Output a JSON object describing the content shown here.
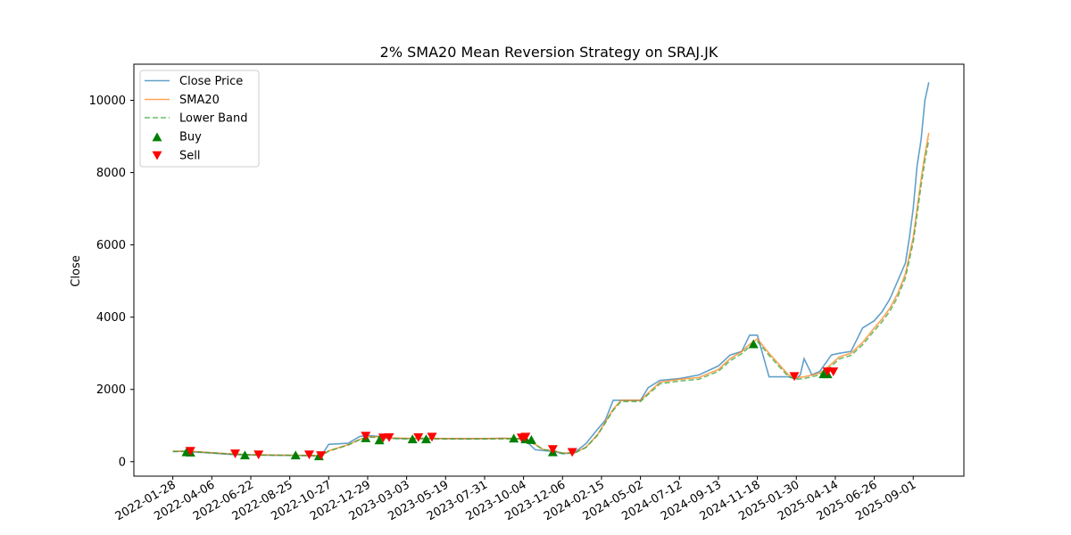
{
  "chart_data": {
    "type": "line",
    "title": "2% SMA20 Mean Reversion Strategy on SRAJ.JK",
    "xlabel": "",
    "ylabel": "Close",
    "ylim": [
      -400,
      11000
    ],
    "yticks": [
      0,
      2000,
      4000,
      6000,
      8000,
      10000
    ],
    "xticks": [
      "2022-01-28",
      "2022-04-06",
      "2022-06-22",
      "2022-08-25",
      "2022-10-27",
      "2022-12-29",
      "2023-03-03",
      "2023-05-19",
      "2023-07-31",
      "2023-10-04",
      "2023-12-06",
      "2024-02-15",
      "2024-05-02",
      "2024-07-12",
      "2024-09-13",
      "2024-11-18",
      "2025-01-30",
      "2025-04-14",
      "2025-06-26",
      "2025-09-01"
    ],
    "xlim_index": [
      -1.0,
      20.3
    ],
    "legend": {
      "position": "top-left",
      "entries": [
        "Close Price",
        "SMA20",
        "Lower Band",
        "Buy",
        "Sell"
      ]
    },
    "colors": {
      "close": "#1f77b4",
      "sma": "#ff7f0e",
      "lower": "#2ca02c",
      "buy": "#008000",
      "sell": "#ff0000"
    },
    "series": [
      {
        "name": "Close Price",
        "x": [
          0,
          0.3,
          0.5,
          1,
          1.5,
          2,
          2.5,
          3,
          3.5,
          3.8,
          4,
          4.5,
          4.8,
          5,
          5.3,
          5.5,
          6,
          6.5,
          7,
          7.5,
          8,
          8.5,
          9,
          9.3,
          9.5,
          9.8,
          10,
          10.3,
          10.6,
          10.9,
          11.1,
          11.3,
          11.5,
          11.8,
          12,
          12.2,
          12.5,
          13,
          13.5,
          14,
          14.3,
          14.6,
          14.8,
          15,
          15.3,
          15.8,
          16,
          16.1,
          16.2,
          16.4,
          16.6,
          16.9,
          17.1,
          17.4,
          17.7,
          18,
          18.2,
          18.4,
          18.6,
          18.8,
          18.9,
          19,
          19.1,
          19.2,
          19.3,
          19.4
        ],
        "y": [
          280,
          290,
          270,
          240,
          200,
          185,
          180,
          175,
          165,
          150,
          480,
          510,
          700,
          720,
          700,
          650,
          640,
          645,
          640,
          640,
          640,
          645,
          640,
          330,
          310,
          280,
          220,
          250,
          500,
          900,
          1150,
          1700,
          1700,
          1700,
          1700,
          2050,
          2250,
          2300,
          2400,
          2650,
          2950,
          3050,
          3500,
          3500,
          2350,
          2350,
          2300,
          2400,
          2850,
          2400,
          2500,
          2950,
          3000,
          3050,
          3700,
          3900,
          4150,
          4500,
          5000,
          5500,
          6200,
          7000,
          8200,
          8900,
          10000,
          10500
        ]
      },
      {
        "name": "SMA20",
        "x": [
          0,
          0.5,
          1,
          1.5,
          2,
          2.5,
          3,
          3.5,
          3.8,
          4,
          4.5,
          4.8,
          5,
          5.3,
          5.5,
          6,
          6.5,
          7,
          7.5,
          8,
          8.5,
          9,
          9.3,
          9.5,
          9.8,
          10,
          10.3,
          10.6,
          10.9,
          11.1,
          11.3,
          11.5,
          11.8,
          12,
          12.2,
          12.5,
          13,
          13.5,
          14,
          14.3,
          14.6,
          14.8,
          15,
          15.3,
          15.8,
          16,
          16.2,
          16.4,
          16.6,
          16.9,
          17.1,
          17.4,
          17.7,
          18,
          18.2,
          18.4,
          18.6,
          18.8,
          19,
          19.1,
          19.2,
          19.3,
          19.4
        ],
        "y": [
          290,
          285,
          250,
          215,
          195,
          185,
          180,
          175,
          165,
          300,
          470,
          620,
          690,
          690,
          660,
          645,
          645,
          642,
          640,
          642,
          645,
          640,
          480,
          340,
          300,
          240,
          240,
          400,
          750,
          1100,
          1450,
          1700,
          1700,
          1700,
          1900,
          2200,
          2280,
          2330,
          2550,
          2850,
          3050,
          3250,
          3400,
          3000,
          2400,
          2330,
          2350,
          2400,
          2450,
          2700,
          2900,
          3000,
          3300,
          3700,
          3950,
          4250,
          4650,
          5200,
          6200,
          7000,
          7800,
          8500,
          9100
        ]
      },
      {
        "name": "Lower Band",
        "x": [
          0,
          0.5,
          1,
          1.5,
          2,
          2.5,
          3,
          3.5,
          3.8,
          4,
          4.5,
          4.8,
          5,
          5.3,
          5.5,
          6,
          6.5,
          7,
          7.5,
          8,
          8.5,
          9,
          9.3,
          9.5,
          9.8,
          10,
          10.3,
          10.6,
          10.9,
          11.1,
          11.3,
          11.5,
          11.8,
          12,
          12.2,
          12.5,
          13,
          13.5,
          14,
          14.3,
          14.6,
          14.8,
          15,
          15.3,
          15.8,
          16,
          16.2,
          16.4,
          16.6,
          16.9,
          17.1,
          17.4,
          17.7,
          18,
          18.2,
          18.4,
          18.6,
          18.8,
          19,
          19.1,
          19.2,
          19.3,
          19.4
        ],
        "y": [
          284,
          279,
          245,
          211,
          191,
          181,
          176,
          171,
          162,
          294,
          460,
          608,
          676,
          676,
          647,
          632,
          632,
          629,
          627,
          629,
          632,
          627,
          470,
          333,
          294,
          235,
          235,
          392,
          735,
          1078,
          1421,
          1666,
          1666,
          1666,
          1862,
          2156,
          2234,
          2283,
          2499,
          2793,
          2989,
          3185,
          3332,
          2940,
          2352,
          2283,
          2303,
          2352,
          2401,
          2646,
          2842,
          2940,
          3234,
          3626,
          3871,
          4165,
          4557,
          5096,
          6076,
          6860,
          7644,
          8330,
          8918
        ]
      }
    ],
    "buy_points": {
      "x": [
        0.35,
        0.45,
        1.85,
        3.15,
        3.75,
        4.95,
        5.3,
        6.15,
        6.5,
        8.75,
        9.05,
        9.2,
        9.75,
        14.9,
        16.7,
        16.8
      ],
      "y": [
        260,
        250,
        175,
        175,
        150,
        650,
        590,
        620,
        620,
        640,
        620,
        600,
        260,
        3250,
        2420,
        2420
      ]
    },
    "sell_points": {
      "x": [
        0.45,
        1.6,
        2.2,
        3.5,
        3.8,
        4.95,
        5.4,
        5.55,
        6.3,
        6.65,
        8.95,
        9.05,
        9.75,
        10.25,
        15.95,
        16.8,
        16.95
      ],
      "y": [
        300,
        230,
        200,
        200,
        180,
        720,
        670,
        680,
        680,
        690,
        670,
        690,
        350,
        270,
        2370,
        2500,
        2500
      ]
    }
  }
}
